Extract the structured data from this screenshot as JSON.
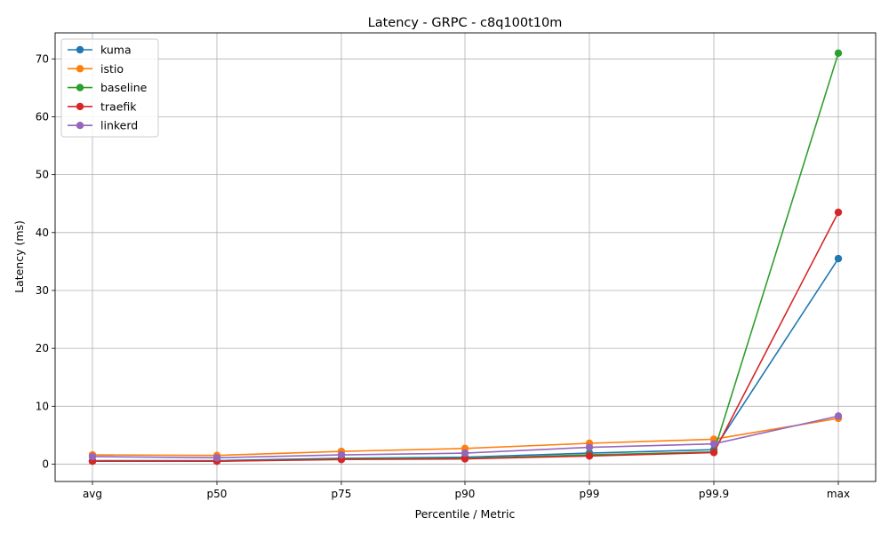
{
  "chart_data": {
    "type": "line",
    "title": "Latency - GRPC - c8q100t10m",
    "xlabel": "Percentile / Metric",
    "ylabel": "Latency (ms)",
    "categories": [
      "avg",
      "p50",
      "p75",
      "p90",
      "p99",
      "p99.9",
      "max"
    ],
    "ylim": [
      -3,
      74.5
    ],
    "yticks": [
      0,
      10,
      20,
      30,
      40,
      50,
      60,
      70
    ],
    "grid": true,
    "legend_position": "upper-left",
    "series": [
      {
        "name": "kuma",
        "color": "#1f77b4",
        "values": [
          0.6,
          0.6,
          1.0,
          1.2,
          1.9,
          2.5,
          35.5
        ]
      },
      {
        "name": "istio",
        "color": "#ff7f0e",
        "values": [
          1.6,
          1.5,
          2.2,
          2.7,
          3.6,
          4.3,
          7.9
        ]
      },
      {
        "name": "baseline",
        "color": "#2ca02c",
        "values": [
          0.5,
          0.5,
          0.9,
          1.0,
          1.6,
          2.1,
          71.0
        ]
      },
      {
        "name": "traefik",
        "color": "#d62728",
        "values": [
          0.5,
          0.5,
          0.8,
          0.9,
          1.4,
          2.0,
          43.5
        ]
      },
      {
        "name": "linkerd",
        "color": "#9467bd",
        "values": [
          1.3,
          1.1,
          1.6,
          1.9,
          2.9,
          3.5,
          8.3
        ]
      }
    ]
  }
}
